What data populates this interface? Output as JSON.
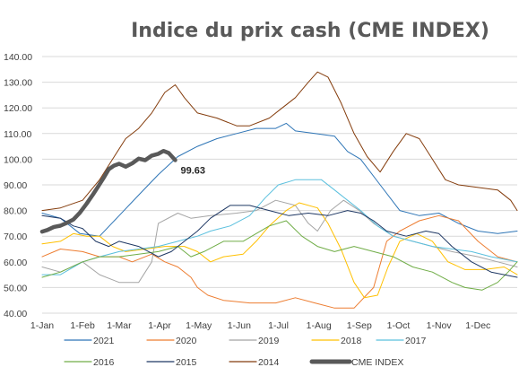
{
  "chart_data": {
    "type": "line",
    "title": "Indice du prix cash (CME INDEX)",
    "xlabel": "",
    "ylabel": "",
    "ylim": [
      40,
      140
    ],
    "yticks": [
      40,
      50,
      60,
      70,
      80,
      90,
      100,
      110,
      120,
      130,
      140
    ],
    "ytick_labels": [
      "40.00",
      "50.00",
      "60.00",
      "70.00",
      "80.00",
      "90.00",
      "100.00",
      "110.00",
      "120.00",
      "130.00",
      "140.00"
    ],
    "xlim": [
      1,
      365
    ],
    "xticks": [
      1,
      32,
      60,
      91,
      121,
      152,
      182,
      213,
      244,
      274,
      305,
      335
    ],
    "xtick_labels": [
      "1-Jan",
      "1-Feb",
      "1-Mar",
      "1-Apr",
      "1-May",
      "1-Jun",
      "1-Jul",
      "1-Aug",
      "1-Sep",
      "1-Oct",
      "1-Nov",
      "1-Dec"
    ],
    "grid": "horizontal",
    "legend_position": "bottom",
    "annotation": {
      "text": "99.63",
      "x": 103,
      "y": 99.63
    },
    "series": [
      {
        "name": "2021",
        "color": "#2e75b6",
        "width": 1,
        "points": [
          [
            1,
            79
          ],
          [
            15,
            77
          ],
          [
            30,
            71
          ],
          [
            45,
            70
          ],
          [
            60,
            78
          ],
          [
            75,
            86
          ],
          [
            90,
            94
          ],
          [
            105,
            101
          ],
          [
            120,
            105
          ],
          [
            135,
            108
          ],
          [
            150,
            110
          ],
          [
            165,
            112
          ],
          [
            180,
            112
          ],
          [
            188,
            114
          ],
          [
            195,
            111
          ],
          [
            210,
            110
          ],
          [
            225,
            109
          ],
          [
            235,
            103
          ],
          [
            245,
            100
          ],
          [
            260,
            90
          ],
          [
            275,
            80
          ],
          [
            290,
            78
          ],
          [
            305,
            79
          ],
          [
            320,
            75
          ],
          [
            335,
            72
          ],
          [
            350,
            71
          ],
          [
            365,
            72
          ]
        ]
      },
      {
        "name": "2020",
        "color": "#ed7d31",
        "width": 1,
        "points": [
          [
            1,
            62
          ],
          [
            15,
            65
          ],
          [
            32,
            64
          ],
          [
            45,
            62
          ],
          [
            60,
            62
          ],
          [
            70,
            60
          ],
          [
            85,
            63
          ],
          [
            95,
            60
          ],
          [
            105,
            58
          ],
          [
            115,
            54
          ],
          [
            120,
            50
          ],
          [
            128,
            47
          ],
          [
            140,
            45
          ],
          [
            160,
            44
          ],
          [
            180,
            44
          ],
          [
            195,
            46
          ],
          [
            210,
            44
          ],
          [
            225,
            42
          ],
          [
            240,
            42
          ],
          [
            255,
            50
          ],
          [
            265,
            68
          ],
          [
            275,
            72
          ],
          [
            290,
            76
          ],
          [
            305,
            78
          ],
          [
            320,
            76
          ],
          [
            335,
            68
          ],
          [
            350,
            62
          ],
          [
            365,
            60
          ]
        ]
      },
      {
        "name": "2019",
        "color": "#a5a5a5",
        "width": 1,
        "points": [
          [
            1,
            58
          ],
          [
            15,
            56
          ],
          [
            32,
            60
          ],
          [
            45,
            55
          ],
          [
            60,
            52
          ],
          [
            75,
            52
          ],
          [
            85,
            60
          ],
          [
            90,
            75
          ],
          [
            105,
            79
          ],
          [
            115,
            77
          ],
          [
            130,
            78
          ],
          [
            150,
            79
          ],
          [
            165,
            80
          ],
          [
            180,
            84
          ],
          [
            195,
            82
          ],
          [
            205,
            75
          ],
          [
            212,
            72
          ],
          [
            222,
            80
          ],
          [
            232,
            84
          ],
          [
            244,
            80
          ],
          [
            255,
            75
          ],
          [
            270,
            70
          ],
          [
            285,
            68
          ],
          [
            300,
            66
          ],
          [
            315,
            64
          ],
          [
            335,
            62
          ],
          [
            350,
            60
          ],
          [
            365,
            58
          ]
        ]
      },
      {
        "name": "2018",
        "color": "#ffc000",
        "width": 1,
        "points": [
          [
            1,
            67
          ],
          [
            15,
            68
          ],
          [
            25,
            71
          ],
          [
            35,
            70
          ],
          [
            45,
            70
          ],
          [
            55,
            66
          ],
          [
            65,
            64
          ],
          [
            80,
            65
          ],
          [
            95,
            66
          ],
          [
            110,
            66
          ],
          [
            120,
            64
          ],
          [
            130,
            60
          ],
          [
            140,
            62
          ],
          [
            155,
            63
          ],
          [
            165,
            68
          ],
          [
            175,
            74
          ],
          [
            188,
            80
          ],
          [
            198,
            83
          ],
          [
            212,
            81
          ],
          [
            220,
            75
          ],
          [
            230,
            65
          ],
          [
            240,
            52
          ],
          [
            248,
            46
          ],
          [
            258,
            47
          ],
          [
            266,
            58
          ],
          [
            275,
            68
          ],
          [
            288,
            71
          ],
          [
            300,
            68
          ],
          [
            312,
            60
          ],
          [
            325,
            57
          ],
          [
            340,
            57
          ],
          [
            355,
            58
          ],
          [
            365,
            55
          ]
        ]
      },
      {
        "name": "2017",
        "color": "#5bc0de",
        "width": 1,
        "points": [
          [
            1,
            55
          ],
          [
            15,
            55
          ],
          [
            32,
            60
          ],
          [
            45,
            62
          ],
          [
            60,
            64
          ],
          [
            75,
            65
          ],
          [
            90,
            66
          ],
          [
            105,
            68
          ],
          [
            120,
            70
          ],
          [
            130,
            72
          ],
          [
            145,
            74
          ],
          [
            160,
            78
          ],
          [
            172,
            85
          ],
          [
            182,
            90
          ],
          [
            195,
            92
          ],
          [
            205,
            92
          ],
          [
            215,
            92
          ],
          [
            225,
            88
          ],
          [
            235,
            84
          ],
          [
            245,
            80
          ],
          [
            258,
            74
          ],
          [
            270,
            70
          ],
          [
            285,
            68
          ],
          [
            300,
            66
          ],
          [
            315,
            65
          ],
          [
            330,
            64
          ],
          [
            345,
            62
          ],
          [
            365,
            60
          ]
        ]
      },
      {
        "name": "2016",
        "color": "#70ad47",
        "width": 1,
        "points": [
          [
            1,
            54
          ],
          [
            15,
            56
          ],
          [
            32,
            60
          ],
          [
            45,
            62
          ],
          [
            60,
            62
          ],
          [
            75,
            63
          ],
          [
            90,
            64
          ],
          [
            105,
            66
          ],
          [
            115,
            62
          ],
          [
            125,
            64
          ],
          [
            140,
            68
          ],
          [
            155,
            68
          ],
          [
            165,
            71
          ],
          [
            175,
            74
          ],
          [
            188,
            76
          ],
          [
            200,
            70
          ],
          [
            212,
            66
          ],
          [
            225,
            64
          ],
          [
            240,
            66
          ],
          [
            255,
            64
          ],
          [
            270,
            62
          ],
          [
            285,
            58
          ],
          [
            300,
            56
          ],
          [
            315,
            52
          ],
          [
            325,
            50
          ],
          [
            338,
            49
          ],
          [
            350,
            52
          ],
          [
            358,
            56
          ],
          [
            365,
            60
          ]
        ]
      },
      {
        "name": "2015",
        "color": "#1f3864",
        "width": 1,
        "points": [
          [
            1,
            78
          ],
          [
            15,
            77
          ],
          [
            25,
            74
          ],
          [
            32,
            73
          ],
          [
            42,
            68
          ],
          [
            52,
            66
          ],
          [
            60,
            68
          ],
          [
            75,
            66
          ],
          [
            90,
            62
          ],
          [
            100,
            64
          ],
          [
            110,
            68
          ],
          [
            120,
            72
          ],
          [
            130,
            77
          ],
          [
            145,
            82
          ],
          [
            160,
            82
          ],
          [
            175,
            80
          ],
          [
            190,
            78
          ],
          [
            205,
            79
          ],
          [
            220,
            78
          ],
          [
            235,
            80
          ],
          [
            245,
            79
          ],
          [
            255,
            76
          ],
          [
            265,
            72
          ],
          [
            280,
            70
          ],
          [
            295,
            72
          ],
          [
            305,
            71
          ],
          [
            315,
            66
          ],
          [
            330,
            60
          ],
          [
            345,
            56
          ],
          [
            355,
            55
          ],
          [
            365,
            54
          ]
        ]
      },
      {
        "name": "2014",
        "color": "#843c0c",
        "width": 1,
        "points": [
          [
            1,
            80
          ],
          [
            15,
            81
          ],
          [
            32,
            84
          ],
          [
            45,
            92
          ],
          [
            55,
            100
          ],
          [
            65,
            108
          ],
          [
            75,
            112
          ],
          [
            85,
            118
          ],
          [
            95,
            126
          ],
          [
            103,
            129
          ],
          [
            110,
            124
          ],
          [
            120,
            118
          ],
          [
            135,
            116
          ],
          [
            150,
            113
          ],
          [
            160,
            113
          ],
          [
            175,
            116
          ],
          [
            185,
            120
          ],
          [
            195,
            124
          ],
          [
            205,
            130
          ],
          [
            212,
            134
          ],
          [
            220,
            132
          ],
          [
            230,
            122
          ],
          [
            240,
            110
          ],
          [
            250,
            101
          ],
          [
            260,
            95
          ],
          [
            270,
            103
          ],
          [
            280,
            110
          ],
          [
            290,
            108
          ],
          [
            300,
            100
          ],
          [
            310,
            92
          ],
          [
            320,
            90
          ],
          [
            335,
            89
          ],
          [
            350,
            88
          ],
          [
            360,
            84
          ],
          [
            365,
            80
          ]
        ]
      },
      {
        "name": "CME INDEX",
        "color": "#595959",
        "width": 4.5,
        "points": [
          [
            1,
            71.8
          ],
          [
            5,
            72.4
          ],
          [
            10,
            73.6
          ],
          [
            15,
            74.1
          ],
          [
            20,
            75.2
          ],
          [
            25,
            76.5
          ],
          [
            30,
            79.2
          ],
          [
            35,
            82.6
          ],
          [
            40,
            86.3
          ],
          [
            44,
            89.4
          ],
          [
            48,
            92.6
          ],
          [
            52,
            96.1
          ],
          [
            56,
            97.5
          ],
          [
            60,
            98.2
          ],
          [
            65,
            97.1
          ],
          [
            70,
            98.4
          ],
          [
            75,
            100.2
          ],
          [
            80,
            99.6
          ],
          [
            85,
            101.4
          ],
          [
            90,
            102.1
          ],
          [
            94,
            103.2
          ],
          [
            98,
            102.4
          ],
          [
            103,
            99.63
          ]
        ]
      }
    ]
  }
}
